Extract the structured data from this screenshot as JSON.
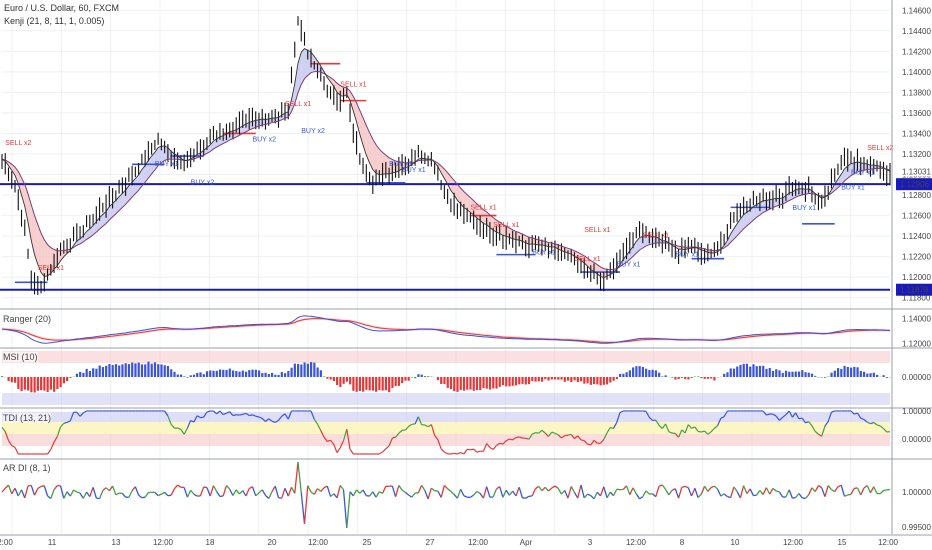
{
  "header": {
    "symbol": "Euro / U.S. Dollar, 60, FXCM",
    "indicator": "Kenji (21, 8, 11, 1, 0.005)"
  },
  "colors": {
    "line_blue": "#1a1ab8",
    "candle": "#111111",
    "red_band": "#f6c6c6",
    "blue_band": "#c8c8f0",
    "sell": "#e23a3a",
    "buy": "#3a55d8",
    "green": "#44a044",
    "mid_yellow": "#fbf6c4"
  },
  "panels": {
    "ranger": {
      "title": "Ranger (20)"
    },
    "msi": {
      "title": "MSI (10)"
    },
    "tdi": {
      "title": "TDI (13, 21)"
    },
    "ardi": {
      "title": "AR DI (8, 1)"
    }
  },
  "chart_data": {
    "type": "line",
    "title": "Euro / U.S. Dollar, 60, FXCM",
    "main_price_axis": {
      "ticks": [
        "1.14600",
        "1.14400",
        "1.14200",
        "1.14000",
        "1.13800",
        "1.13600",
        "1.13400",
        "1.13200",
        "1.13031",
        "1.13000",
        "1.12800",
        "1.12600",
        "1.12400",
        "1.12200",
        "1.12000",
        "1.11800"
      ],
      "current_price": "1.13031",
      "countdown": "28:33",
      "ylim": [
        1.117,
        1.147
      ]
    },
    "horizontal_levels": [
      {
        "value": 1.12906,
        "label": "1.12906"
      },
      {
        "value": 1.11878,
        "label": "1.11878"
      }
    ],
    "x_ticks": [
      "2:00",
      "11",
      "13",
      "12:00",
      "18",
      "20",
      "12:00",
      "25",
      "27",
      "12:00",
      "Apr",
      "3",
      "12:00",
      "8",
      "10",
      "12:00",
      "15",
      "12:00"
    ],
    "price_series": [
      {
        "i": 0,
        "v": 1.1315
      },
      {
        "i": 4,
        "v": 1.129
      },
      {
        "i": 7,
        "v": 1.1245
      },
      {
        "i": 9,
        "v": 1.12
      },
      {
        "i": 12,
        "v": 1.1188
      },
      {
        "i": 15,
        "v": 1.121
      },
      {
        "i": 18,
        "v": 1.1225
      },
      {
        "i": 22,
        "v": 1.1238
      },
      {
        "i": 26,
        "v": 1.125
      },
      {
        "i": 30,
        "v": 1.1265
      },
      {
        "i": 35,
        "v": 1.1282
      },
      {
        "i": 40,
        "v": 1.13
      },
      {
        "i": 45,
        "v": 1.1322
      },
      {
        "i": 48,
        "v": 1.1335
      },
      {
        "i": 52,
        "v": 1.1318
      },
      {
        "i": 56,
        "v": 1.1312
      },
      {
        "i": 60,
        "v": 1.1322
      },
      {
        "i": 65,
        "v": 1.1338
      },
      {
        "i": 70,
        "v": 1.1345
      },
      {
        "i": 75,
        "v": 1.135
      },
      {
        "i": 80,
        "v": 1.1355
      },
      {
        "i": 85,
        "v": 1.1358
      },
      {
        "i": 88,
        "v": 1.1365
      },
      {
        "i": 91,
        "v": 1.145
      },
      {
        "i": 94,
        "v": 1.142
      },
      {
        "i": 97,
        "v": 1.14
      },
      {
        "i": 100,
        "v": 1.1385
      },
      {
        "i": 103,
        "v": 1.137
      },
      {
        "i": 106,
        "v": 1.138
      },
      {
        "i": 108,
        "v": 1.134
      },
      {
        "i": 111,
        "v": 1.1305
      },
      {
        "i": 114,
        "v": 1.1295
      },
      {
        "i": 118,
        "v": 1.13
      },
      {
        "i": 122,
        "v": 1.1308
      },
      {
        "i": 125,
        "v": 1.1312
      },
      {
        "i": 128,
        "v": 1.132
      },
      {
        "i": 132,
        "v": 1.1315
      },
      {
        "i": 136,
        "v": 1.1285
      },
      {
        "i": 140,
        "v": 1.1265
      },
      {
        "i": 145,
        "v": 1.1255
      },
      {
        "i": 150,
        "v": 1.1245
      },
      {
        "i": 155,
        "v": 1.1238
      },
      {
        "i": 160,
        "v": 1.1232
      },
      {
        "i": 165,
        "v": 1.123
      },
      {
        "i": 170,
        "v": 1.1226
      },
      {
        "i": 175,
        "v": 1.1218
      },
      {
        "i": 180,
        "v": 1.1205
      },
      {
        "i": 184,
        "v": 1.1195
      },
      {
        "i": 188,
        "v": 1.1208
      },
      {
        "i": 192,
        "v": 1.1232
      },
      {
        "i": 196,
        "v": 1.1245
      },
      {
        "i": 200,
        "v": 1.124
      },
      {
        "i": 204,
        "v": 1.1232
      },
      {
        "i": 208,
        "v": 1.1225
      },
      {
        "i": 212,
        "v": 1.123
      },
      {
        "i": 216,
        "v": 1.1222
      },
      {
        "i": 220,
        "v": 1.1225
      },
      {
        "i": 224,
        "v": 1.1255
      },
      {
        "i": 228,
        "v": 1.127
      },
      {
        "i": 232,
        "v": 1.1275
      },
      {
        "i": 236,
        "v": 1.1278
      },
      {
        "i": 240,
        "v": 1.128
      },
      {
        "i": 244,
        "v": 1.129
      },
      {
        "i": 248,
        "v": 1.1285
      },
      {
        "i": 252,
        "v": 1.127
      },
      {
        "i": 256,
        "v": 1.13
      },
      {
        "i": 259,
        "v": 1.1318
      },
      {
        "i": 262,
        "v": 1.1312
      },
      {
        "i": 266,
        "v": 1.131
      },
      {
        "i": 270,
        "v": 1.1305
      },
      {
        "i": 273,
        "v": 1.13
      }
    ],
    "signals": [
      {
        "i": 1,
        "v": 1.1325,
        "t": "SELL x2",
        "side": "sell"
      },
      {
        "i": 11,
        "v": 1.1203,
        "t": "SELL x1",
        "side": "sell"
      },
      {
        "i": 47,
        "v": 1.1318,
        "t": "BUY x1",
        "side": "buy"
      },
      {
        "i": 58,
        "v": 1.13,
        "t": "BUY x2",
        "side": "buy"
      },
      {
        "i": 77,
        "v": 1.1342,
        "t": "BUY x2",
        "side": "buy"
      },
      {
        "i": 87,
        "v": 1.1363,
        "t": "SELL x1",
        "side": "sell"
      },
      {
        "i": 92,
        "v": 1.135,
        "t": "BUY x2",
        "side": "buy"
      },
      {
        "i": 104,
        "v": 1.1382,
        "t": "SELL x1",
        "side": "sell"
      },
      {
        "i": 119,
        "v": 1.1318,
        "t": "BUY x1",
        "side": "buy"
      },
      {
        "i": 123,
        "v": 1.1312,
        "t": "BUY x1",
        "side": "buy"
      },
      {
        "i": 144,
        "v": 1.1262,
        "t": "SELL x1",
        "side": "sell"
      },
      {
        "i": 151,
        "v": 1.1245,
        "t": "SELL x1",
        "side": "sell"
      },
      {
        "i": 163,
        "v": 1.1232,
        "t": "BUY x1",
        "side": "buy"
      },
      {
        "i": 176,
        "v": 1.1212,
        "t": "SELL x1",
        "side": "sell"
      },
      {
        "i": 179,
        "v": 1.124,
        "t": "SELL x1",
        "side": "sell"
      },
      {
        "i": 189,
        "v": 1.122,
        "t": "BUY x1",
        "side": "buy"
      },
      {
        "i": 197,
        "v": 1.1235,
        "t": "SELL x1",
        "side": "sell"
      },
      {
        "i": 207,
        "v": 1.123,
        "t": "BUY x1",
        "side": "buy"
      },
      {
        "i": 243,
        "v": 1.1275,
        "t": "BUY x1",
        "side": "buy"
      },
      {
        "i": 258,
        "v": 1.1295,
        "t": "BUY x1",
        "side": "buy"
      },
      {
        "i": 261,
        "v": 1.131,
        "t": "BUY x1",
        "side": "buy"
      },
      {
        "i": 266,
        "v": 1.132,
        "t": "SELL x2",
        "side": "sell"
      }
    ],
    "signal_levels": [
      {
        "i0": 4,
        "i1": 14,
        "v": 1.1195,
        "side": "buy"
      },
      {
        "i0": 40,
        "i1": 50,
        "v": 1.131,
        "side": "buy"
      },
      {
        "i0": 52,
        "i1": 62,
        "v": 1.1318,
        "side": "buy"
      },
      {
        "i0": 68,
        "i1": 78,
        "v": 1.134,
        "side": "sell"
      },
      {
        "i0": 95,
        "i1": 104,
        "v": 1.1408,
        "side": "sell"
      },
      {
        "i0": 104,
        "i1": 112,
        "v": 1.1372,
        "side": "sell"
      },
      {
        "i0": 112,
        "i1": 124,
        "v": 1.1292,
        "side": "buy"
      },
      {
        "i0": 144,
        "i1": 152,
        "v": 1.126,
        "side": "sell"
      },
      {
        "i0": 152,
        "i1": 164,
        "v": 1.1222,
        "side": "buy"
      },
      {
        "i0": 178,
        "i1": 190,
        "v": 1.1205,
        "side": "buy"
      },
      {
        "i0": 212,
        "i1": 222,
        "v": 1.1218,
        "side": "buy"
      },
      {
        "i0": 224,
        "i1": 236,
        "v": 1.1268,
        "side": "buy"
      },
      {
        "i0": 246,
        "i1": 256,
        "v": 1.1252,
        "side": "buy"
      }
    ],
    "ranger": {
      "ticks": [
        "1.14000",
        "1.12000"
      ],
      "ylim": [
        1.117,
        1.147
      ]
    },
    "msi": {
      "ticks": [
        "0.00000"
      ]
    },
    "tdi": {
      "ticks": [
        "1.00000",
        "0.00000"
      ]
    },
    "ardi": {
      "ticks": [
        "1.00000",
        "0.99500"
      ]
    }
  }
}
